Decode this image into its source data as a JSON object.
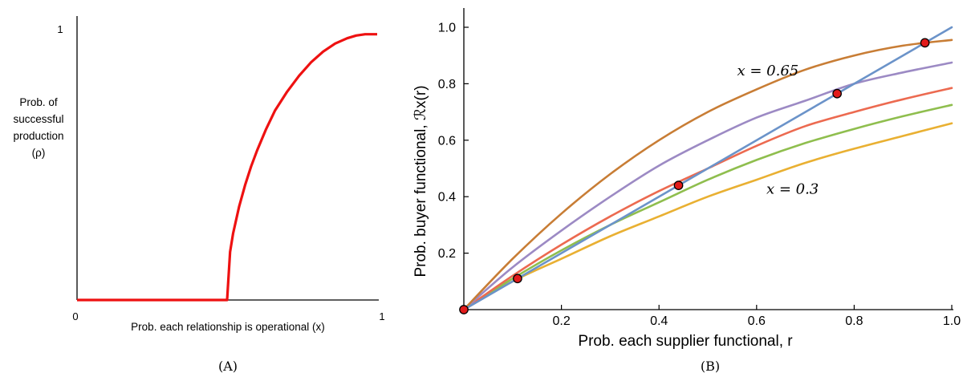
{
  "chart_data": [
    {
      "type": "line",
      "panel_caption": "(A)",
      "xlabel": "Prob. each relationship is operational  (x)",
      "ylabel_lines": [
        "Prob. of",
        "successful",
        "production",
        "(ρ)"
      ],
      "x_tick_labels": [
        "0",
        "1"
      ],
      "y_tick_labels": [
        "1"
      ],
      "xlim": [
        0,
        1
      ],
      "ylim": [
        0,
        1
      ],
      "grid": false,
      "series": [
        {
          "color": "#ee1111",
          "x": [
            0,
            0.5,
            0.5,
            0.51,
            0.52,
            0.54,
            0.56,
            0.58,
            0.6,
            0.63,
            0.66,
            0.7,
            0.74,
            0.78,
            0.82,
            0.86,
            0.9,
            0.93,
            0.96,
            1.0
          ],
          "y": [
            0,
            0,
            0,
            0.18,
            0.25,
            0.35,
            0.43,
            0.5,
            0.56,
            0.64,
            0.71,
            0.78,
            0.84,
            0.89,
            0.93,
            0.96,
            0.98,
            0.99,
            0.995,
            0.995
          ]
        }
      ]
    },
    {
      "type": "line",
      "panel_caption": "(B)",
      "xlabel": "Prob. each supplier functional, r",
      "ylabel": "Prob. buyer functional, ℛx(r)",
      "x_tick_labels": [
        "0.2",
        "0.4",
        "0.6",
        "0.8",
        "1.0"
      ],
      "y_tick_labels": [
        "0.2",
        "0.4",
        "0.6",
        "0.8",
        "1.0"
      ],
      "x_ticks": [
        0.2,
        0.4,
        0.6,
        0.8,
        1.0
      ],
      "y_ticks": [
        0.2,
        0.4,
        0.6,
        0.8,
        1.0
      ],
      "xlim": [
        0,
        1.0
      ],
      "ylim": [
        0,
        1.05
      ],
      "grid": false,
      "annotations": [
        {
          "text": "x = 0.65",
          "x": 0.56,
          "y": 0.83
        },
        {
          "text": "x = 0.3",
          "x": 0.62,
          "y": 0.41
        }
      ],
      "fixed_points": [
        {
          "x": 0,
          "y": 0
        },
        {
          "x": 0.11,
          "y": 0.11
        },
        {
          "x": 0.44,
          "y": 0.44
        },
        {
          "x": 0.765,
          "y": 0.765
        },
        {
          "x": 0.945,
          "y": 0.945
        }
      ],
      "series": [
        {
          "color": "#6b93c9",
          "x": [
            0,
            1.0
          ],
          "y": [
            0,
            1.0
          ]
        },
        {
          "color": "#c87d35",
          "x": [
            0,
            0.1,
            0.2,
            0.3,
            0.4,
            0.5,
            0.6,
            0.7,
            0.8,
            0.9,
            1.0
          ],
          "y": [
            0,
            0.18,
            0.34,
            0.48,
            0.6,
            0.7,
            0.78,
            0.85,
            0.9,
            0.935,
            0.955
          ]
        },
        {
          "color": "#9c8ac4",
          "x": [
            0,
            0.1,
            0.2,
            0.3,
            0.4,
            0.5,
            0.6,
            0.7,
            0.8,
            0.9,
            1.0
          ],
          "y": [
            0,
            0.15,
            0.28,
            0.4,
            0.51,
            0.6,
            0.68,
            0.74,
            0.8,
            0.84,
            0.875
          ]
        },
        {
          "color": "#ec6a50",
          "x": [
            0,
            0.1,
            0.2,
            0.3,
            0.4,
            0.5,
            0.6,
            0.7,
            0.8,
            0.9,
            1.0
          ],
          "y": [
            0,
            0.12,
            0.23,
            0.33,
            0.42,
            0.5,
            0.58,
            0.65,
            0.7,
            0.745,
            0.785
          ]
        },
        {
          "color": "#8fbe4e",
          "x": [
            0,
            0.1,
            0.2,
            0.3,
            0.4,
            0.5,
            0.6,
            0.7,
            0.8,
            0.9,
            1.0
          ],
          "y": [
            0,
            0.11,
            0.21,
            0.3,
            0.38,
            0.46,
            0.53,
            0.59,
            0.64,
            0.685,
            0.725
          ]
        },
        {
          "color": "#e9b032",
          "x": [
            0,
            0.1,
            0.2,
            0.3,
            0.4,
            0.5,
            0.6,
            0.7,
            0.8,
            0.9,
            1.0
          ],
          "y": [
            0,
            0.1,
            0.18,
            0.26,
            0.33,
            0.4,
            0.46,
            0.52,
            0.57,
            0.615,
            0.66
          ]
        }
      ]
    }
  ]
}
